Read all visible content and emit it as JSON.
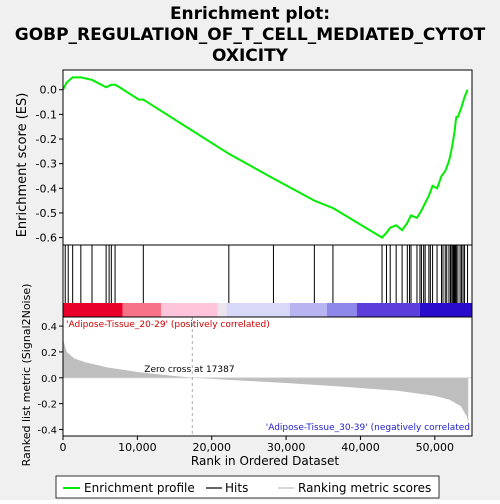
{
  "chart_data": {
    "type": "line",
    "title": "Enrichment plot: GOBP_REGULATION_OF_T_CELL_MEDIATED_CYTOTOXICITY",
    "title_lines": [
      "Enrichment plot:",
      "GOBP_REGULATION_OF_T_CELL_MEDIATED_CYTOT",
      "OXICITY"
    ],
    "xlabel": "Rank in Ordered Dataset",
    "xlim": [
      0,
      55000
    ],
    "x_ticks": [
      0,
      10000,
      20000,
      30000,
      40000,
      50000
    ],
    "x_tick_labels": [
      "0",
      "10,000",
      "20,000",
      "30,000",
      "40,000",
      "50,000"
    ],
    "es_panel": {
      "ylabel": "Enrichment score (ES)",
      "ylim": [
        -0.63,
        0.08
      ],
      "y_ticks": [
        0.0,
        -0.1,
        -0.2,
        -0.3,
        -0.4,
        -0.5,
        -0.6
      ],
      "y_tick_labels": [
        "0.0",
        "-0.1",
        "-0.2",
        "-0.3",
        "-0.4",
        "-0.5",
        "-0.6"
      ],
      "grid": false,
      "series": [
        {
          "name": "Enrichment profile",
          "color": "#00ee00",
          "x": [
            0,
            500,
            1300,
            2400,
            3900,
            5800,
            6500,
            7000,
            7600,
            10200,
            10800,
            22300,
            28300,
            33800,
            36300,
            42900,
            43500,
            44000,
            44800,
            45600,
            46300,
            46800,
            47600,
            48200,
            48700,
            49200,
            49700,
            50300,
            50900,
            51400,
            51900,
            52200,
            52500,
            52700,
            52800,
            52900,
            53100,
            53600,
            54000,
            54400
          ],
          "y": [
            0.0,
            0.03,
            0.05,
            0.05,
            0.04,
            0.01,
            0.02,
            0.02,
            0.01,
            -0.04,
            -0.04,
            -0.26,
            -0.36,
            -0.45,
            -0.48,
            -0.6,
            -0.58,
            -0.56,
            -0.55,
            -0.57,
            -0.54,
            -0.51,
            -0.52,
            -0.49,
            -0.46,
            -0.43,
            -0.39,
            -0.4,
            -0.35,
            -0.33,
            -0.29,
            -0.25,
            -0.2,
            -0.16,
            -0.13,
            -0.11,
            -0.11,
            -0.07,
            -0.03,
            0.0
          ]
        }
      ]
    },
    "hits": {
      "name": "Hits",
      "x": [
        300,
        700,
        1300,
        2400,
        3900,
        5800,
        6200,
        6500,
        7000,
        10800,
        22300,
        28300,
        33800,
        36300,
        42900,
        43500,
        44000,
        44800,
        45600,
        46300,
        46600,
        46800,
        47600,
        48000,
        48200,
        48500,
        48700,
        49200,
        49400,
        49700,
        50300,
        50900,
        51100,
        51400,
        51600,
        51900,
        52100,
        52200,
        52400,
        52500,
        52600,
        52700,
        52800,
        52900,
        53100,
        53400,
        53600,
        53800,
        54000,
        54400
      ]
    },
    "rank_panel": {
      "name": "Ranking metric scores",
      "ylabel": "Ranked list metric (Signal2Noise)",
      "ylim": [
        -0.45,
        0.47
      ],
      "y_ticks": [
        0.4,
        0.2,
        0.0,
        -0.2,
        -0.4
      ],
      "y_tick_labels": [
        "0.4",
        "0.2",
        "0.0",
        "-0.2",
        "-0.4"
      ],
      "color": "#bebebe",
      "x": [
        0,
        500,
        1500,
        3000,
        6000,
        10000,
        14000,
        17387,
        22000,
        30000,
        38000,
        45000,
        50000,
        52000,
        53500,
        54300,
        54500
      ],
      "y": [
        0.3,
        0.2,
        0.15,
        0.12,
        0.08,
        0.045,
        0.02,
        0.0,
        -0.015,
        -0.04,
        -0.07,
        -0.1,
        -0.14,
        -0.17,
        -0.22,
        -0.3,
        -0.35
      ]
    },
    "zero_cross": {
      "x": 17387,
      "label": "Zero cross at 17387"
    },
    "phenotype_labels": {
      "positive": "'Adipose-Tissue_20-29' (positively correlated)",
      "negative": "'Adipose-Tissue_30-39' (negatively correlated"
    },
    "color_bar": {
      "segments": [
        {
          "from": 0,
          "to": 8000,
          "color": "#e8002a"
        },
        {
          "from": 8000,
          "to": 13200,
          "color": "#f77488"
        },
        {
          "from": 13200,
          "to": 20800,
          "color": "#fdc4da"
        },
        {
          "from": 20800,
          "to": 22000,
          "color": "#eee4ee"
        },
        {
          "from": 22000,
          "to": 30500,
          "color": "#d8d8f8"
        },
        {
          "from": 30500,
          "to": 35500,
          "color": "#b8b4f2"
        },
        {
          "from": 35500,
          "to": 39500,
          "color": "#8e88ea"
        },
        {
          "from": 39500,
          "to": 48000,
          "color": "#5c3edc"
        },
        {
          "from": 48000,
          "to": 55000,
          "color": "#2a0ccc"
        }
      ]
    },
    "legend": {
      "placement": "bottom",
      "entries": [
        {
          "label": "Enrichment profile",
          "color": "#00ee00",
          "kind": "line"
        },
        {
          "label": "Hits",
          "color": "#000000",
          "kind": "line"
        },
        {
          "label": "Ranking metric scores",
          "color": "#bebebe",
          "kind": "line"
        }
      ]
    }
  }
}
